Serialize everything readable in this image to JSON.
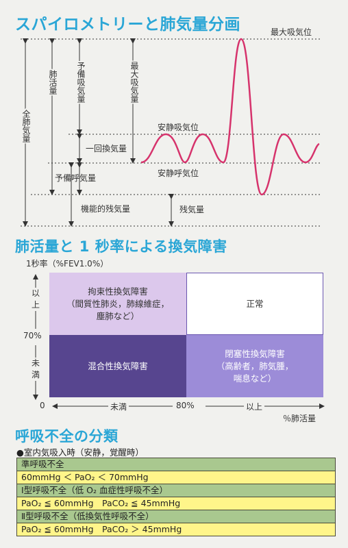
{
  "sections": {
    "spirometry_title": "スパイロメトリーと肺気量分画",
    "disorder_title": "肺活量と 1 秒率による換気障害",
    "resp_failure_title": "呼吸不全の分類"
  },
  "spirometry": {
    "levels": {
      "max_insp": "最大吸気位",
      "rest_insp": "安静吸気位",
      "rest_exp": "安静呼気位"
    },
    "volumes": {
      "total_lung": "全肺気量",
      "vital_capacity": "肺活量",
      "irv": "予備吸気量",
      "inspiratory_capacity": "最大吸気量",
      "tidal": "一回換気量",
      "erv": "予備呼気量",
      "frc": "機能的残気量",
      "rv": "残気量"
    },
    "colors": {
      "wave": "#d6336c",
      "dotted": "#333333"
    }
  },
  "disorders": {
    "y_axis_label": "1秒率（%FEV1.0%）",
    "y_upper": "以上",
    "y_lower": "未満",
    "y_threshold": "70%",
    "origin": "0",
    "x_lower": "未満",
    "x_threshold": "80%",
    "x_upper": "以上",
    "x_axis_label": "％肺活量",
    "cells": {
      "restrictive": [
        "拘束性換気障害",
        "（間質性肺炎，肺線維症，",
        "塵肺など）"
      ],
      "normal": [
        "正常"
      ],
      "mixed": [
        "混合性換気障害"
      ],
      "obstructive": [
        "閉塞性換気障害",
        "（高齢者，肺気腫，",
        "喘息など）"
      ]
    },
    "colors": {
      "restrictive": "#dcc8ec",
      "normal": "#ffffff",
      "mixed": "#57458f",
      "obstructive": "#9c8cd8"
    }
  },
  "resp_failure": {
    "condition": "●室内気吸入時（安静，覚醒時）",
    "rows": [
      {
        "text": "準呼吸不全",
        "kind": "header"
      },
      {
        "text": "60mmHg ＜ PaO₂ ＜ 70mmHg",
        "kind": "value"
      },
      {
        "text": "Ⅰ型呼吸不全（低 O₂ 血症性呼吸不全）",
        "kind": "header"
      },
      {
        "text": "PaO₂ ≦ 60mmHg　PaCO₂ ≦ 45mmHg",
        "kind": "value"
      },
      {
        "text": "Ⅱ型呼吸不全（低換気性呼吸不全）",
        "kind": "header"
      },
      {
        "text": "PaO₂ ≦ 60mmHg　PaCO₂ ＞ 45mmHg",
        "kind": "value"
      }
    ],
    "colors": {
      "header": "#a9c88f",
      "value": "#fff58a"
    }
  }
}
